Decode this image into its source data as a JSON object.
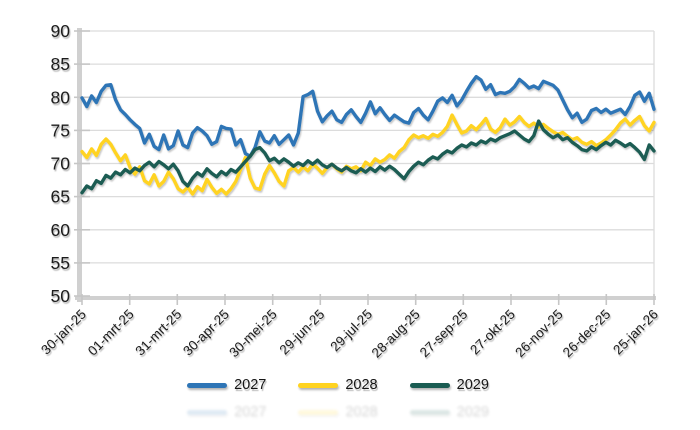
{
  "chart_data": {
    "type": "line",
    "x_tick_labels": [
      "30-jan-25",
      "01-mrt-25",
      "31-mrt-25",
      "30-apr-25",
      "30-mei-25",
      "29-jun-25",
      "29-jul-25",
      "28-aug-25",
      "27-sep-25",
      "27-okt-25",
      "26-nov-25",
      "26-dec-25",
      "25-jan-26"
    ],
    "y_ticks": [
      50,
      55,
      60,
      65,
      70,
      75,
      80,
      85,
      90
    ],
    "y_range": [
      50,
      90
    ],
    "grid": "horizontal",
    "legend_position": "bottom-center",
    "axis_color": "#d0d0d0",
    "gridline_color": "#dcdcdc",
    "label_color": "#1c1c1c",
    "series": [
      {
        "name": "2027",
        "color": "#2E75B6",
        "values": [
          79.9,
          78.6,
          80.2,
          79.2,
          80.9,
          81.8,
          81.9,
          79.6,
          78.1,
          77.4,
          76.6,
          75.9,
          75.3,
          73.1,
          74.4,
          72.6,
          72.1,
          74.3,
          72.2,
          72.7,
          74.9,
          72.8,
          72.4,
          74.6,
          75.4,
          74.9,
          74.2,
          72.9,
          73.3,
          75.6,
          75.3,
          75.2,
          72.8,
          73.6,
          71.5,
          71.1,
          72.4,
          74.8,
          73.4,
          73.1,
          74.2,
          72.9,
          73.6,
          74.3,
          72.8,
          74.6,
          80.1,
          80.4,
          80.9,
          77.9,
          76.3,
          77.2,
          77.9,
          76.6,
          76.2,
          77.4,
          78.1,
          77.1,
          76.2,
          77.6,
          79.3,
          77.5,
          78.4,
          77.4,
          76.5,
          77.3,
          76.8,
          76.3,
          76.1,
          77.7,
          78.3,
          77.3,
          76.6,
          77.9,
          79.4,
          79.9,
          79.2,
          80.3,
          78.7,
          79.6,
          80.9,
          82.1,
          83.1,
          82.6,
          81.2,
          81.9,
          80.4,
          80.7,
          80.6,
          80.9,
          81.6,
          82.7,
          82.1,
          81.4,
          81.7,
          81.3,
          82.4,
          82.1,
          81.8,
          81.1,
          79.6,
          78.1,
          76.9,
          77.6,
          76.2,
          76.7,
          78.0,
          78.3,
          77.7,
          78.2,
          77.6,
          77.9,
          78.2,
          77.4,
          78.6,
          80.3,
          80.8,
          79.4,
          80.6,
          78.2
        ]
      },
      {
        "name": "2028",
        "color": "#FFD320",
        "values": [
          71.8,
          70.9,
          72.2,
          71.2,
          72.9,
          73.7,
          72.9,
          71.6,
          70.4,
          71.3,
          69.4,
          68.4,
          69.5,
          67.4,
          66.9,
          68.3,
          66.6,
          67.3,
          68.7,
          67.7,
          66.2,
          65.7,
          66.4,
          65.4,
          66.5,
          65.9,
          67.6,
          66.4,
          65.5,
          66.1,
          65.4,
          66.2,
          67.3,
          69.1,
          70.9,
          67.8,
          66.3,
          66.1,
          68.4,
          69.7,
          68.6,
          67.3,
          66.6,
          68.9,
          69.4,
          68.7,
          69.5,
          68.9,
          69.9,
          69.3,
          68.5,
          69.4,
          69.9,
          69.2,
          68.7,
          69.6,
          69.2,
          69.5,
          68.9,
          70.2,
          69.7,
          70.7,
          70.2,
          70.6,
          71.3,
          70.8,
          71.8,
          72.4,
          73.6,
          74.3,
          73.9,
          74.2,
          73.8,
          74.4,
          74.1,
          74.7,
          75.6,
          77.3,
          75.9,
          74.6,
          74.9,
          75.7,
          75.1,
          75.9,
          76.8,
          75.2,
          74.7,
          75.4,
          76.7,
          75.8,
          76.3,
          77.1,
          76.2,
          75.6,
          76.1,
          75.5,
          75.9,
          75.3,
          74.8,
          74.4,
          74.7,
          74.1,
          73.6,
          73.9,
          73.2,
          72.9,
          73.3,
          72.7,
          73.1,
          73.6,
          74.3,
          75.1,
          76.1,
          76.7,
          75.8,
          76.5,
          77.1,
          75.7,
          74.9,
          76.2
        ]
      },
      {
        "name": "2029",
        "color": "#1A5C52",
        "values": [
          65.6,
          66.6,
          66.2,
          67.4,
          67.0,
          68.2,
          67.8,
          68.7,
          68.3,
          69.1,
          68.6,
          69.3,
          68.9,
          69.7,
          70.2,
          69.5,
          70.3,
          69.8,
          69.2,
          69.9,
          68.9,
          67.3,
          66.6,
          67.8,
          68.6,
          68.1,
          69.2,
          68.5,
          68.0,
          68.8,
          68.3,
          69.1,
          68.7,
          69.5,
          70.3,
          71.1,
          72.1,
          72.4,
          71.6,
          70.4,
          70.8,
          70.1,
          70.7,
          70.2,
          69.6,
          70.1,
          69.7,
          70.4,
          69.9,
          70.5,
          69.8,
          69.4,
          69.9,
          69.3,
          68.9,
          69.4,
          68.9,
          68.6,
          69.2,
          68.7,
          69.3,
          68.8,
          69.5,
          69.0,
          69.6,
          69.1,
          68.4,
          67.7,
          68.8,
          69.6,
          70.2,
          69.8,
          70.5,
          71.0,
          70.7,
          71.4,
          71.9,
          71.6,
          72.3,
          72.8,
          72.5,
          73.1,
          72.8,
          73.4,
          73.1,
          73.7,
          73.4,
          73.9,
          74.2,
          74.5,
          74.9,
          74.3,
          73.7,
          73.3,
          74.2,
          76.4,
          75.1,
          74.4,
          73.9,
          74.3,
          73.6,
          73.9,
          73.2,
          72.7,
          72.1,
          71.9,
          72.5,
          72.1,
          72.7,
          73.2,
          72.8,
          73.5,
          73.1,
          72.6,
          73.0,
          72.4,
          71.7,
          70.6,
          72.8,
          71.9
        ]
      }
    ]
  },
  "legend": {
    "items": [
      {
        "label": "2027"
      },
      {
        "label": "2028"
      },
      {
        "label": "2029"
      }
    ]
  }
}
